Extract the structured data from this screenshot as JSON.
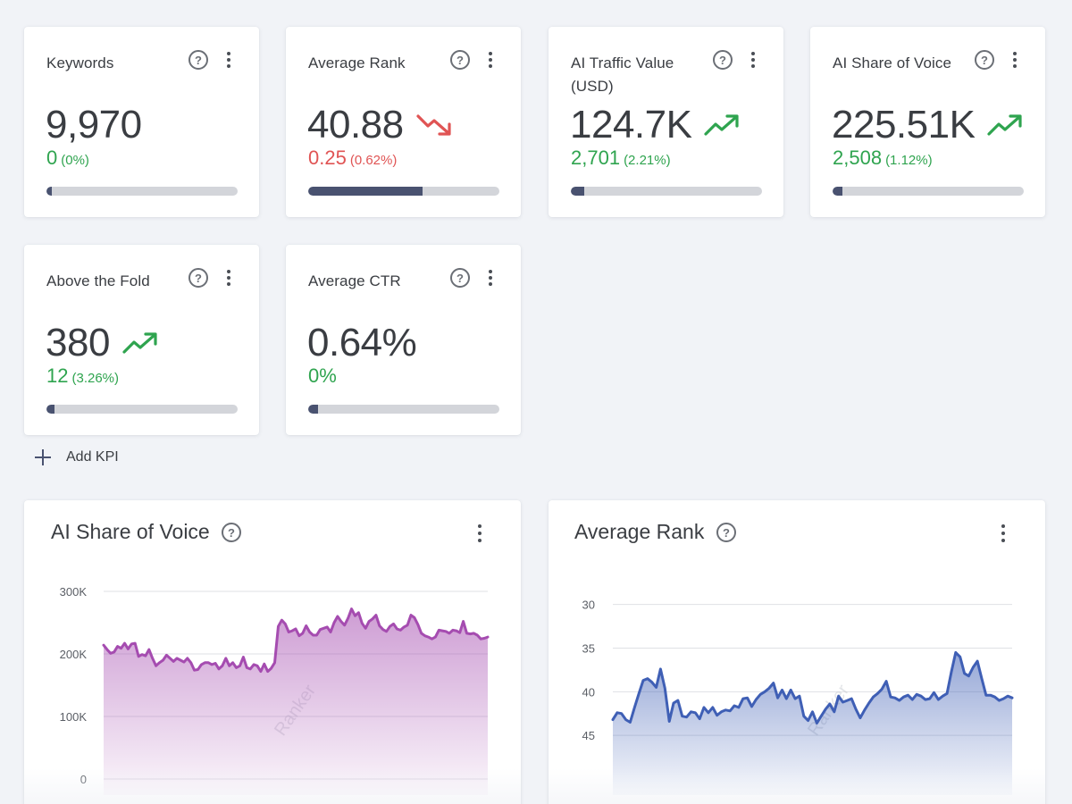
{
  "kpis": [
    {
      "title": "Keywords",
      "value": "9,970",
      "trend": "none",
      "change": "0",
      "change_pct": "(0%)",
      "change_color": "green",
      "progress": 0.03
    },
    {
      "title": "Average Rank",
      "value": "40.88",
      "trend": "down",
      "change": "0.25",
      "change_pct": "(0.62%)",
      "change_color": "red",
      "progress": 0.6
    },
    {
      "title": "AI Traffic Value (USD)",
      "value": "124.7K",
      "trend": "up",
      "change": "2,701",
      "change_pct": "(2.21%)",
      "change_color": "green",
      "progress": 0.07
    },
    {
      "title": "AI Share of Voice",
      "value": "225.51K",
      "trend": "up",
      "change": "2,508",
      "change_pct": "(1.12%)",
      "change_color": "green",
      "progress": 0.05
    },
    {
      "title": "Above the Fold",
      "value": "380",
      "trend": "up",
      "change": "12",
      "change_pct": "(3.26%)",
      "change_color": "green",
      "progress": 0.04
    },
    {
      "title": "Average CTR",
      "value": "0.64%",
      "trend": "none",
      "change": "0%",
      "change_pct": "",
      "change_color": "green",
      "progress": 0.05
    }
  ],
  "help_glyph": "?",
  "add_kpi": {
    "label": "Add KPI"
  },
  "colors": {
    "green": "#2fa44f",
    "red": "#e05454",
    "progress_fill": "#495270",
    "progress_track": "#d3d5da",
    "sov_line": "#a54cb0",
    "rank_line": "#3f5fb5"
  },
  "chart_data": [
    {
      "type": "area",
      "title": "AI Share of Voice",
      "watermark": "Ranker",
      "y_ticks": [
        "300K",
        "200K",
        "100K",
        "0"
      ],
      "y_tick_values": [
        300000,
        200000,
        100000,
        0
      ],
      "ylim": [
        0,
        300000
      ],
      "y_inverted": false,
      "grid": true,
      "values": [
        214000,
        207000,
        201000,
        203000,
        212000,
        209000,
        217000,
        208000,
        216000,
        217000,
        196000,
        199000,
        197000,
        207000,
        193000,
        181000,
        186000,
        190000,
        198000,
        193000,
        188000,
        193000,
        190000,
        187000,
        193000,
        186000,
        174000,
        175000,
        183000,
        186000,
        186000,
        183000,
        185000,
        176000,
        181000,
        193000,
        181000,
        186000,
        178000,
        181000,
        195000,
        178000,
        176000,
        183000,
        181000,
        172000,
        184000,
        172000,
        177000,
        186000,
        244000,
        254000,
        248000,
        235000,
        237000,
        240000,
        229000,
        233000,
        245000,
        235000,
        230000,
        230000,
        239000,
        241000,
        243000,
        235000,
        250000,
        260000,
        252000,
        246000,
        257000,
        272000,
        261000,
        266000,
        249000,
        241000,
        252000,
        256000,
        262000,
        245000,
        239000,
        236000,
        244000,
        248000,
        240000,
        238000,
        243000,
        246000,
        262000,
        258000,
        247000,
        233000,
        229000,
        227000,
        224000,
        227000,
        238000,
        237000,
        236000,
        233000,
        238000,
        237000,
        234000,
        252000,
        233000,
        232000,
        233000,
        230000,
        224000,
        225000,
        227000
      ]
    },
    {
      "type": "area",
      "title": "Average Rank",
      "watermark": "Ranker",
      "y_ticks": [
        "30",
        "35",
        "40",
        "45"
      ],
      "y_tick_values": [
        30,
        35,
        40,
        45
      ],
      "ylim": [
        28.5,
        50
      ],
      "y_inverted": true,
      "grid": true,
      "values": [
        43.2,
        42.4,
        42.5,
        43.2,
        43.5,
        41.8,
        40.2,
        38.7,
        38.5,
        38.9,
        39.5,
        37.4,
        39.6,
        43.4,
        41.3,
        41.0,
        42.8,
        42.9,
        42.3,
        42.4,
        43.1,
        41.8,
        42.4,
        41.8,
        42.7,
        42.3,
        42.1,
        42.2,
        41.6,
        41.8,
        40.8,
        40.7,
        41.7,
        40.9,
        40.3,
        40.0,
        39.6,
        39.0,
        40.7,
        39.8,
        40.8,
        39.8,
        40.8,
        40.5,
        42.8,
        43.3,
        42.3,
        43.6,
        42.8,
        42.0,
        41.4,
        42.3,
        40.5,
        41.2,
        41.0,
        40.8,
        42.0,
        43.0,
        42.1,
        41.3,
        40.6,
        40.2,
        39.7,
        38.8,
        40.6,
        40.7,
        41.0,
        40.6,
        40.4,
        40.9,
        40.3,
        40.5,
        40.9,
        40.8,
        40.1,
        40.9,
        40.5,
        40.2,
        37.7,
        35.5,
        36.0,
        37.9,
        38.2,
        37.2,
        36.5,
        38.5,
        40.4,
        40.4,
        40.6,
        41.0,
        40.8,
        40.5,
        40.7
      ]
    }
  ]
}
